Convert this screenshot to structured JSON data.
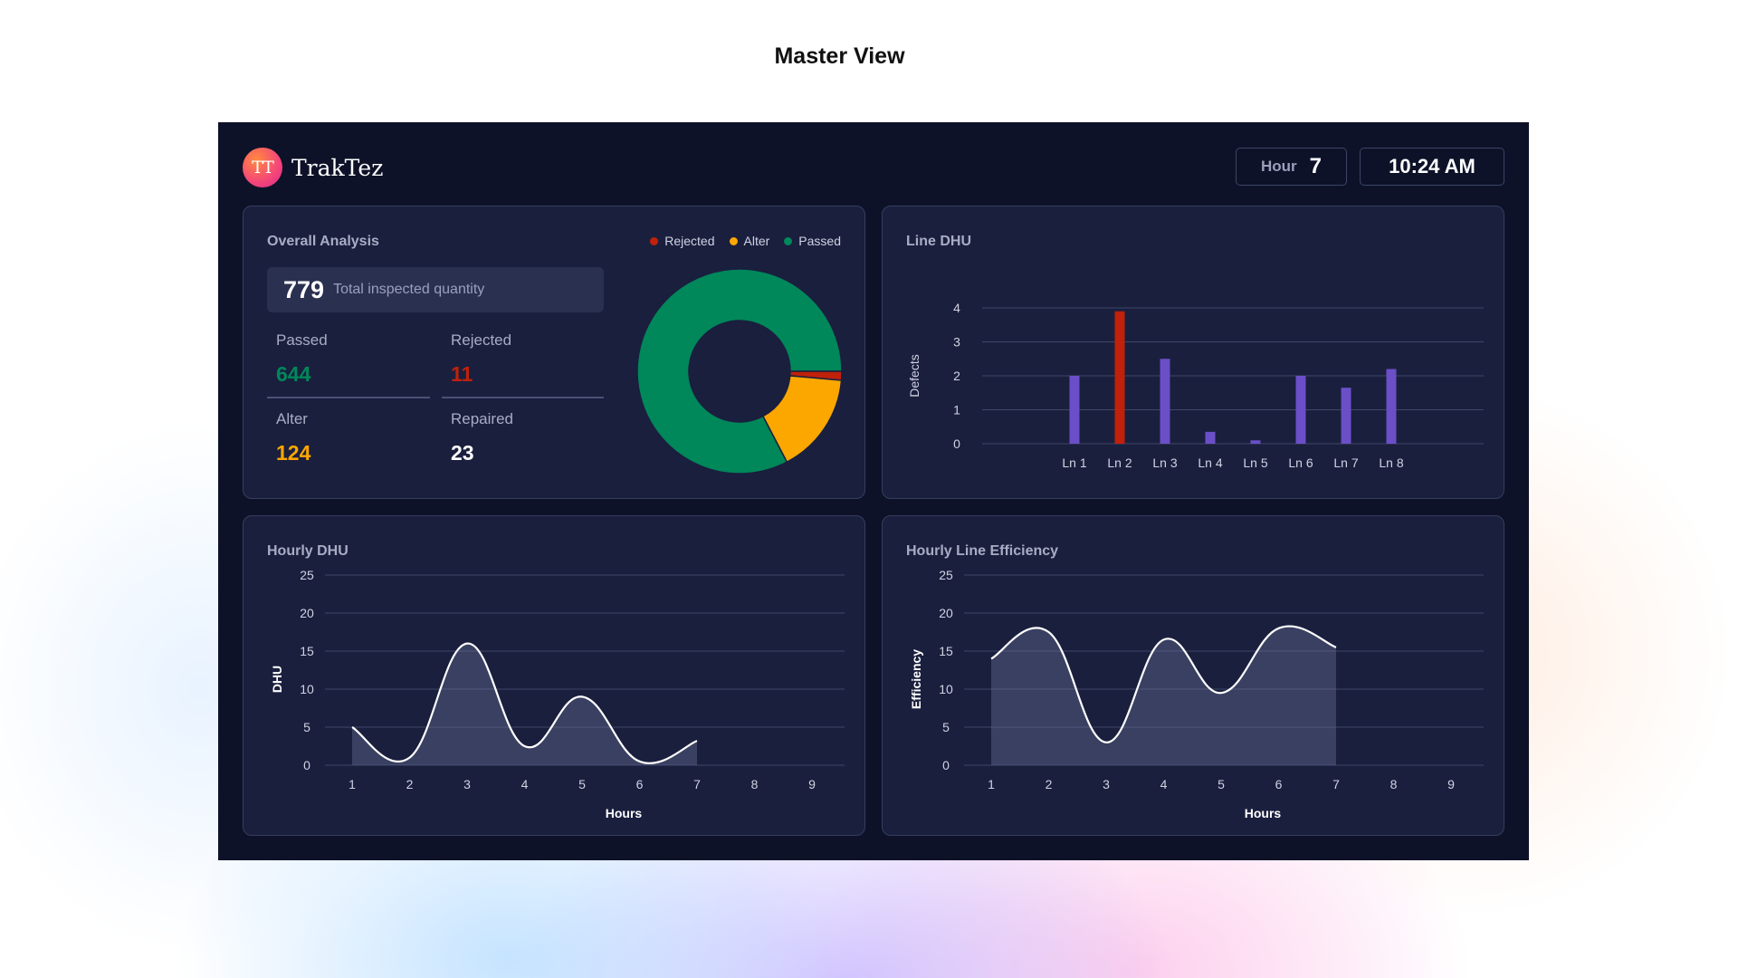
{
  "page": {
    "title": "Master View"
  },
  "header": {
    "logo_text": "TT",
    "brand": "TrakTez",
    "hour_label": "Hour",
    "hour_value": "7",
    "time": "10:24 AM"
  },
  "colors": {
    "passed": "#00875a",
    "rejected": "#c0210a",
    "alter": "#fba700",
    "bar": "#6a4fc8",
    "highlight": "#c0210a"
  },
  "overall": {
    "title": "Overall Analysis",
    "total_value": "779",
    "total_label": "Total inspected quantity",
    "passed_label": "Passed",
    "passed_value": "644",
    "rejected_label": "Rejected",
    "rejected_value": "11",
    "alter_label": "Alter",
    "alter_value": "124",
    "repaired_label": "Repaired",
    "repaired_value": "23",
    "legend": {
      "rejected": "Rejected",
      "alter": "Alter",
      "passed": "Passed"
    }
  },
  "line_dhu": {
    "title": "Line DHU"
  },
  "hourly_dhu": {
    "title": "Hourly DHU"
  },
  "hourly_eff": {
    "title": "Hourly Line Efficiency"
  },
  "chart_data": [
    {
      "id": "overall",
      "type": "pie",
      "title": "Overall Analysis",
      "categories": [
        "Passed",
        "Rejected",
        "Alter"
      ],
      "values": [
        644,
        11,
        124
      ]
    },
    {
      "id": "line_dhu",
      "type": "bar",
      "title": "Line DHU",
      "ylabel": "Defects",
      "xlabel": "",
      "ylim": [
        0,
        4
      ],
      "yticks": [
        0,
        1,
        2,
        3,
        4
      ],
      "categories": [
        "Ln 1",
        "Ln 2",
        "Ln 3",
        "Ln 4",
        "Ln 5",
        "Ln 6",
        "Ln 7",
        "Ln 8"
      ],
      "values": [
        2.0,
        3.9,
        2.5,
        0.35,
        0.1,
        2.0,
        1.65,
        2.2
      ],
      "highlight_index": 1
    },
    {
      "id": "hourly_dhu",
      "type": "area",
      "title": "Hourly DHU",
      "xlabel": "Hours",
      "ylabel": "DHU",
      "ylim": [
        0,
        25
      ],
      "yticks": [
        0,
        5,
        10,
        15,
        20,
        25
      ],
      "categories": [
        "1",
        "2",
        "3",
        "4",
        "5",
        "6",
        "7",
        "8",
        "9"
      ],
      "x": [
        1,
        2,
        3,
        4,
        5,
        6,
        7
      ],
      "values": [
        5,
        1,
        16,
        2.5,
        9,
        0.5,
        3.2
      ]
    },
    {
      "id": "hourly_eff",
      "type": "area",
      "title": "Hourly Line Efficiency",
      "xlabel": "Hours",
      "ylabel": "Efficiency",
      "ylim": [
        0,
        25
      ],
      "yticks": [
        0,
        5,
        10,
        15,
        20,
        25
      ],
      "categories": [
        "1",
        "2",
        "3",
        "4",
        "5",
        "6",
        "7",
        "8",
        "9"
      ],
      "x": [
        1,
        2,
        3,
        4,
        5,
        6,
        7
      ],
      "values": [
        14,
        17.5,
        3,
        16.5,
        9.5,
        18,
        15.5
      ]
    }
  ]
}
